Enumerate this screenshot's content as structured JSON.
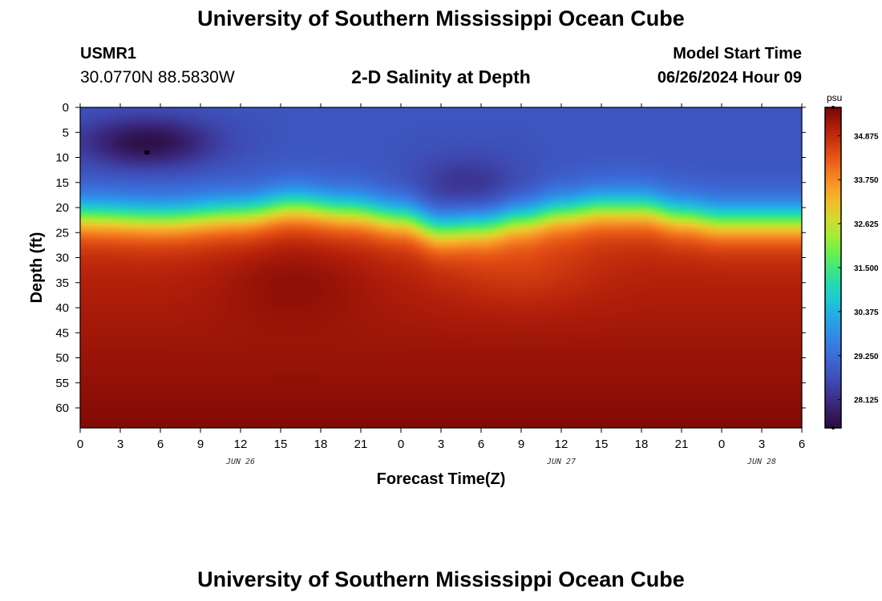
{
  "header": {
    "title": "University of Southern Mississippi Ocean Cube",
    "station_id": "USMR1",
    "coords": "30.0770N  88.5830W",
    "plot_title": "2-D Salinity at Depth",
    "start_label": "Model Start Time",
    "start_time": "06/26/2024 Hour 09"
  },
  "footer": {
    "title": "University of Southern Mississippi Ocean Cube"
  },
  "chart_data": {
    "type": "heatmap",
    "title": "2-D Salinity at Depth",
    "xlabel": "Forecast Time(Z)",
    "ylabel": "Depth (ft)",
    "x_range_hours": [
      0,
      54
    ],
    "y_range_ft": [
      0,
      64
    ],
    "y_inverted": true,
    "x_tick_labels": [
      "0",
      "3",
      "6",
      "9",
      "12",
      "15",
      "18",
      "21",
      "0",
      "3",
      "6",
      "9",
      "12",
      "15",
      "18",
      "21",
      "0",
      "3",
      "6"
    ],
    "x_date_labels": [
      {
        "label": "JUN 26",
        "at_hour": 12
      },
      {
        "label": "JUN 27",
        "at_hour": 36
      },
      {
        "label": "JUN 28",
        "at_hour": 51
      }
    ],
    "y_ticks": [
      0,
      5,
      10,
      15,
      20,
      25,
      30,
      35,
      40,
      45,
      50,
      55,
      60
    ],
    "y_tick_labels": [
      "0",
      "5",
      "10",
      "15",
      "20",
      "25",
      "30",
      "35",
      "40",
      "45",
      "50",
      "55",
      "60"
    ],
    "colorbar": {
      "unit": "psu",
      "range": [
        27.4,
        35.6
      ],
      "tick_values": [
        34.875,
        33.75,
        32.625,
        31.5,
        30.375,
        29.25,
        28.125
      ],
      "tick_labels": [
        "34.875",
        "33.750",
        "32.625",
        "31.500",
        "30.375",
        "29.250",
        "28.125"
      ],
      "colormap": "turbo"
    },
    "halocline_depth_ft": [
      {
        "hour": 0,
        "depth": 19.5
      },
      {
        "hour": 6,
        "depth": 20
      },
      {
        "hour": 12,
        "depth": 19
      },
      {
        "hour": 16,
        "depth": 17.5
      },
      {
        "hour": 20,
        "depth": 18.5
      },
      {
        "hour": 24,
        "depth": 20
      },
      {
        "hour": 27,
        "depth": 22.5
      },
      {
        "hour": 30,
        "depth": 22
      },
      {
        "hour": 33,
        "depth": 20.5
      },
      {
        "hour": 36,
        "depth": 19
      },
      {
        "hour": 39,
        "depth": 18
      },
      {
        "hour": 42,
        "depth": 18
      },
      {
        "hour": 45,
        "depth": 19.5
      },
      {
        "hour": 48,
        "depth": 20.5
      },
      {
        "hour": 54,
        "depth": 20.5
      }
    ],
    "surface_salinity_psu": 28.8,
    "fresh_lens": {
      "center_hour": 5,
      "center_depth_ft": 7,
      "min_salinity_psu": 27.5
    },
    "deep_salinity_psu": {
      "at_30ft": 34.9,
      "at_64ft": 35.5
    },
    "marker": {
      "hour": 5,
      "depth_ft": 9
    }
  }
}
